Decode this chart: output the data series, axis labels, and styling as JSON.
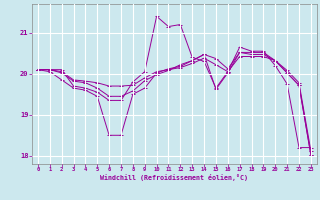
{
  "title": "",
  "xlabel": "Windchill (Refroidissement éolien,°C)",
  "ylabel": "",
  "background_color": "#cce8ee",
  "line_color": "#990099",
  "grid_color": "#ffffff",
  "ylim": [
    17.8,
    21.7
  ],
  "xlim": [
    -0.5,
    23.5
  ],
  "yticks": [
    18,
    19,
    20,
    21
  ],
  "xticks": [
    0,
    1,
    2,
    3,
    4,
    5,
    6,
    7,
    8,
    9,
    10,
    11,
    12,
    13,
    14,
    15,
    16,
    17,
    18,
    19,
    20,
    21,
    22,
    23
  ],
  "series": [
    [
      20.1,
      20.1,
      20.1,
      19.7,
      19.65,
      19.55,
      19.35,
      19.35,
      19.8,
      20.05,
      21.4,
      21.15,
      21.2,
      20.4,
      20.3,
      19.65,
      20.05,
      20.65,
      20.55,
      20.55,
      20.2,
      19.75,
      18.2,
      18.2
    ],
    [
      20.1,
      20.1,
      20.05,
      19.85,
      19.82,
      19.78,
      19.7,
      19.7,
      19.72,
      19.9,
      20.05,
      20.1,
      20.15,
      20.25,
      20.38,
      20.22,
      20.05,
      20.42,
      20.42,
      20.42,
      20.32,
      20.08,
      19.78,
      18.12
    ],
    [
      20.1,
      20.1,
      20.02,
      19.82,
      19.78,
      19.65,
      19.45,
      19.45,
      19.58,
      19.83,
      19.98,
      20.08,
      20.22,
      20.32,
      20.47,
      20.37,
      20.12,
      20.52,
      20.52,
      20.52,
      20.32,
      20.02,
      19.72,
      18.02
    ],
    [
      20.1,
      20.05,
      19.85,
      19.65,
      19.6,
      19.45,
      18.5,
      18.5,
      19.5,
      19.65,
      20.02,
      20.12,
      20.18,
      20.32,
      20.47,
      19.62,
      20.02,
      20.52,
      20.47,
      20.47,
      20.32,
      20.02,
      19.72,
      18.02
    ]
  ]
}
